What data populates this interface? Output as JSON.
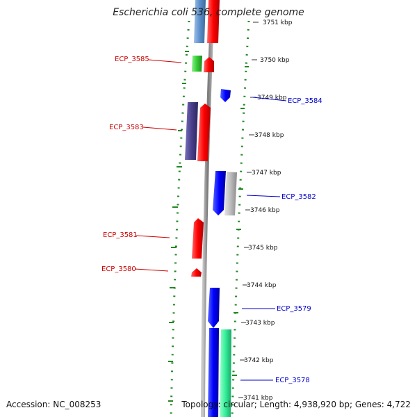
{
  "title": "Escherichia coli 536, complete genome",
  "accession": "Accession: NC_008253",
  "topology": "Topology: circular; Length: 4,938,920 bp; Genes: 4,722",
  "ruler": [
    "3751 kbp",
    "3750 kbp",
    "3749 kbp",
    "3748 kbp",
    "3747 kbp",
    "3746 kbp",
    "3745 kbp",
    "3744 kbp",
    "3743 kbp",
    "3742 kbp",
    "3741 kbp"
  ],
  "genes_reverse": [
    "ECP_3585",
    "ECP_3583",
    "ECP_3581",
    "ECP_3580"
  ],
  "genes_forward": [
    "ECP_3584",
    "ECP_3582",
    "ECP_3579",
    "ECP_3578"
  ],
  "colors": {
    "reverse_label": "#cc0000",
    "forward_label": "#0000cc",
    "backbone": "#888888",
    "gc_skew": "#228822",
    "cds_red": "#ff0000",
    "cds_blue": "#0000ff",
    "cds_green": "#33cc33",
    "cds_purple": "#4a3f8c",
    "cds_grey": "#bbbbbb",
    "cds_teal": "#33ee99",
    "cds_lightblue": "#5b8ec8"
  }
}
